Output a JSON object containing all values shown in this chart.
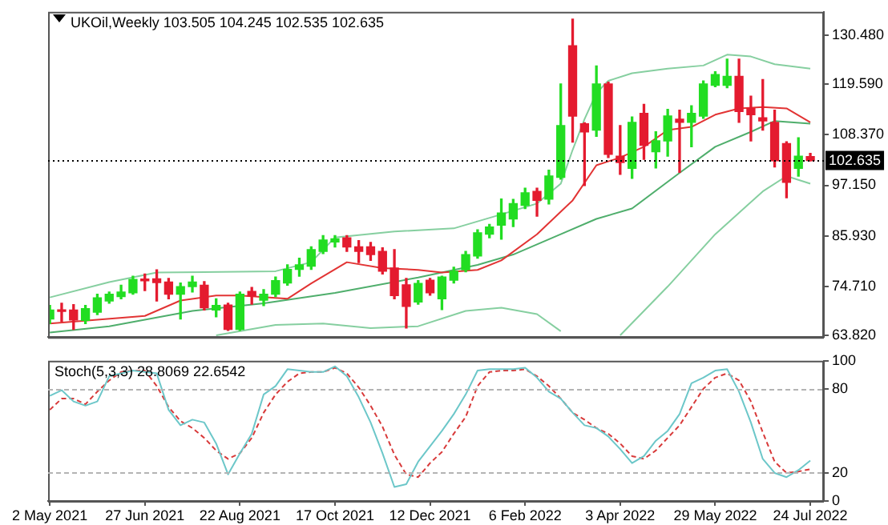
{
  "chart_data": [
    {
      "type": "candlestick",
      "title": "UKOil,Weekly 103.505 104.245 102.535 102.635",
      "x": [
        "2021-05-02",
        "2021-05-09",
        "2021-05-16",
        "2021-05-23",
        "2021-05-30",
        "2021-06-06",
        "2021-06-13",
        "2021-06-20",
        "2021-06-27",
        "2021-07-04",
        "2021-07-11",
        "2021-07-18",
        "2021-07-25",
        "2021-08-01",
        "2021-08-08",
        "2021-08-15",
        "2021-08-22",
        "2021-08-29",
        "2021-09-05",
        "2021-09-12",
        "2021-09-19",
        "2021-09-26",
        "2021-10-03",
        "2021-10-10",
        "2021-10-17",
        "2021-10-24",
        "2021-10-31",
        "2021-11-07",
        "2021-11-14",
        "2021-11-21",
        "2021-11-28",
        "2021-12-05",
        "2021-12-12",
        "2021-12-19",
        "2021-12-26",
        "2022-01-02",
        "2022-01-09",
        "2022-01-16",
        "2022-01-23",
        "2022-01-30",
        "2022-02-06",
        "2022-02-13",
        "2022-02-20",
        "2022-02-27",
        "2022-03-06",
        "2022-03-13",
        "2022-03-20",
        "2022-03-27",
        "2022-04-03",
        "2022-04-10",
        "2022-04-17",
        "2022-04-24",
        "2022-05-01",
        "2022-05-08",
        "2022-05-15",
        "2022-05-22",
        "2022-05-29",
        "2022-06-05",
        "2022-06-12",
        "2022-06-19",
        "2022-06-26",
        "2022-07-03",
        "2022-07-10",
        "2022-07-17",
        "2022-07-24"
      ],
      "ohlc": [
        [
          67.5,
          70.5,
          66.5,
          69.5
        ],
        [
          69.5,
          71,
          67,
          69.2
        ],
        [
          69.5,
          70.7,
          65.2,
          67.3
        ],
        [
          67.2,
          70.5,
          66.5,
          69.8
        ],
        [
          69,
          73,
          68.5,
          72.2
        ],
        [
          71.5,
          73.5,
          71,
          73
        ],
        [
          72.5,
          75,
          72,
          73.5
        ],
        [
          73.3,
          77,
          73,
          76.3
        ],
        [
          76.3,
          77.5,
          73.8,
          76
        ],
        [
          76.4,
          78.4,
          71.5,
          75.6
        ],
        [
          75.7,
          76.5,
          72,
          73
        ],
        [
          73,
          75.5,
          67.5,
          74.7
        ],
        [
          74.7,
          77,
          73.5,
          75.7
        ],
        [
          75,
          75.8,
          69.5,
          70
        ],
        [
          69.5,
          72,
          68,
          70.5
        ],
        [
          70.6,
          71,
          65,
          65.2
        ],
        [
          65.2,
          73.5,
          65,
          73
        ],
        [
          73.6,
          74.5,
          70.8,
          72.6
        ],
        [
          71.7,
          74,
          70.5,
          73
        ],
        [
          73,
          76.8,
          72.5,
          76
        ],
        [
          75.5,
          79.5,
          75,
          78.5
        ],
        [
          78.5,
          81,
          77,
          79.5
        ],
        [
          79.2,
          83.5,
          78.5,
          82.9
        ],
        [
          82.5,
          86,
          82,
          85
        ],
        [
          84.6,
          86,
          83.5,
          85.3
        ],
        [
          85.5,
          86,
          82.5,
          83.5
        ],
        [
          83.5,
          84.9,
          80,
          82.5
        ],
        [
          83.5,
          84.5,
          80.5,
          81.8
        ],
        [
          82.5,
          83.3,
          77.5,
          78.1
        ],
        [
          78.8,
          82.9,
          72,
          72.7
        ],
        [
          75.1,
          76.5,
          65.5,
          70.3
        ],
        [
          71.3,
          76,
          70.8,
          75.4
        ],
        [
          76.1,
          76.5,
          72.8,
          73.3
        ],
        [
          72,
          77,
          69.6,
          76.8
        ],
        [
          76.1,
          79,
          75.5,
          78.1
        ],
        [
          78.4,
          82.5,
          78,
          81.8
        ],
        [
          81.5,
          87.3,
          81,
          86.6
        ],
        [
          86.3,
          88.5,
          85.5,
          87.9
        ],
        [
          88.3,
          94.1,
          85.2,
          91
        ],
        [
          89.7,
          94,
          88,
          93.1
        ],
        [
          92.7,
          96.5,
          92,
          95.5
        ],
        [
          95.8,
          96.5,
          90.3,
          93.8
        ],
        [
          94.1,
          100.5,
          93,
          99.2
        ],
        [
          98.9,
          119.6,
          98.5,
          110.4
        ],
        [
          128.1,
          134,
          106.7,
          112.5
        ],
        [
          110.8,
          111,
          97.1,
          109
        ],
        [
          109.4,
          123.6,
          108,
          119.6
        ],
        [
          119.6,
          120,
          103.3,
          104
        ],
        [
          103.6,
          110.4,
          99.6,
          102.2
        ],
        [
          100.9,
          112.3,
          98.7,
          111.1
        ],
        [
          113.1,
          115.1,
          102.9,
          106
        ],
        [
          104.6,
          109,
          101,
          107
        ],
        [
          107,
          114,
          103.6,
          112.5
        ],
        [
          111.8,
          113.8,
          100,
          111.1
        ],
        [
          111.1,
          114.8,
          105.7,
          113.1
        ],
        [
          112.5,
          120.3,
          112,
          119.6
        ],
        [
          119.3,
          122.3,
          119,
          121.7
        ],
        [
          119.3,
          125.1,
          118.8,
          121.3
        ],
        [
          121.3,
          125.1,
          111.1,
          113.5
        ],
        [
          114.2,
          116.9,
          107,
          112.8
        ],
        [
          112.1,
          120.6,
          109.4,
          111.4
        ],
        [
          111.1,
          113.8,
          101.2,
          102.6
        ],
        [
          106.4,
          106.8,
          94.4,
          97.8
        ],
        [
          100.9,
          107.7,
          99.2,
          103.6
        ],
        [
          103.505,
          104.245,
          102.535,
          102.635
        ]
      ],
      "colors": [
        "#22dd22",
        "#e41b2f",
        "#e41b2f",
        "#22dd22",
        "#22dd22",
        "#22dd22",
        "#22dd22",
        "#22dd22",
        "#e41b2f",
        "#e41b2f",
        "#e41b2f",
        "#22dd22",
        "#22dd22",
        "#e41b2f",
        "#22dd22",
        "#e41b2f",
        "#22dd22",
        "#e41b2f",
        "#22dd22",
        "#22dd22",
        "#22dd22",
        "#22dd22",
        "#22dd22",
        "#22dd22",
        "#22dd22",
        "#e41b2f",
        "#e41b2f",
        "#e41b2f",
        "#e41b2f",
        "#e41b2f",
        "#e41b2f",
        "#22dd22",
        "#e41b2f",
        "#22dd22",
        "#22dd22",
        "#22dd22",
        "#22dd22",
        "#22dd22",
        "#22dd22",
        "#22dd22",
        "#22dd22",
        "#e41b2f",
        "#22dd22",
        "#22dd22",
        "#e41b2f",
        "#e41b2f",
        "#22dd22",
        "#e41b2f",
        "#e41b2f",
        "#22dd22",
        "#e41b2f",
        "#22dd22",
        "#22dd22",
        "#e41b2f",
        "#22dd22",
        "#22dd22",
        "#22dd22",
        "#22dd22",
        "#e41b2f",
        "#e41b2f",
        "#e41b2f",
        "#e41b2f",
        "#e41b2f",
        "#22dd22",
        "#e41b2f"
      ],
      "series": [
        {
          "type": "line",
          "color": "#86cfa0",
          "x": [
            "2021-05-02",
            "2021-06-06",
            "2021-07-04",
            "2021-09-12",
            "2021-10-03",
            "2021-10-17",
            "2021-11-21",
            "2021-12-26",
            "2022-01-23",
            "2022-02-13",
            "2022-02-27",
            "2022-03-06",
            "2022-03-13",
            "2022-03-20",
            "2022-03-27",
            "2022-04-10",
            "2022-05-01",
            "2022-05-22",
            "2022-06-05",
            "2022-06-19",
            "2022-07-03",
            "2022-07-24"
          ],
          "values": [
            72.3,
            75.7,
            77.8,
            78.1,
            80.1,
            85.6,
            86.9,
            87.6,
            90.7,
            93.1,
            97.5,
            105,
            111.8,
            117.6,
            120.3,
            122,
            123,
            123.7,
            126.1,
            125.7,
            124,
            123
          ]
        },
        {
          "type": "line",
          "color": "#e23434",
          "x": [
            "2021-05-02",
            "2021-06-27",
            "2021-07-18",
            "2021-08-08",
            "2021-08-22",
            "2021-09-19",
            "2021-10-03",
            "2021-10-24",
            "2021-11-14",
            "2021-12-05",
            "2021-12-19",
            "2022-01-09",
            "2022-01-23",
            "2022-02-13",
            "2022-03-06",
            "2022-03-20",
            "2022-04-03",
            "2022-04-17",
            "2022-05-01",
            "2022-05-15",
            "2022-05-29",
            "2022-06-12",
            "2022-06-26",
            "2022-07-10",
            "2022-07-24"
          ],
          "values": [
            66.5,
            68.2,
            71.6,
            72.7,
            72.7,
            72,
            75.4,
            80.1,
            78.8,
            78.4,
            77.8,
            78.4,
            80.5,
            86.3,
            93.8,
            101.6,
            103.3,
            105.7,
            109.4,
            110.1,
            112.8,
            114.2,
            114.5,
            114.2,
            111.1
          ]
        },
        {
          "type": "line",
          "color": "#4fae6c",
          "x": [
            "2021-05-02",
            "2021-06-06",
            "2021-07-25",
            "2021-09-05",
            "2021-10-17",
            "2021-12-05",
            "2022-01-09",
            "2022-01-30",
            "2022-02-27",
            "2022-03-20",
            "2022-04-10",
            "2022-05-08",
            "2022-05-29",
            "2022-06-19",
            "2022-07-03",
            "2022-07-24"
          ],
          "values": [
            64.5,
            65.9,
            69.3,
            71,
            73.3,
            76.7,
            79.5,
            81.8,
            86.3,
            89.7,
            92,
            99.9,
            105.7,
            109,
            111.4,
            110.8
          ]
        },
        {
          "type": "line",
          "color": "#86cfa0",
          "x": [
            "2021-08-08",
            "2021-09-12",
            "2021-10-10",
            "2021-11-07",
            "2021-12-05",
            "2022-01-02",
            "2022-01-23",
            "2022-02-13",
            "2022-02-27",
            "2022-03-13",
            "2022-04-03",
            "2022-05-01",
            "2022-05-29",
            "2022-06-26",
            "2022-07-10",
            "2022-07-24"
          ],
          "values": [
            63.9,
            66.2,
            66.5,
            65.5,
            65.9,
            69.3,
            70,
            68.6,
            64.8,
            null,
            63.9,
            74.7,
            86.3,
            95.8,
            99.2,
            97.5
          ]
        }
      ],
      "xlim": [
        "2021-05-01",
        "2022-08-01"
      ],
      "ylim": [
        63.5,
        135.6
      ],
      "yticks": [
        {
          "value": 63.82,
          "label": "63.820"
        },
        {
          "value": 74.71,
          "label": "74.710"
        },
        {
          "value": 85.93,
          "label": "85.930"
        },
        {
          "value": 97.15,
          "label": "97.150"
        },
        {
          "value": 108.37,
          "label": "108.370"
        },
        {
          "value": 119.59,
          "label": "119.590"
        },
        {
          "value": 130.48,
          "label": "130.480"
        }
      ],
      "tick_labels": "y",
      "ref_lines": [
        {
          "axis": "y",
          "value": 102.635,
          "label": "102.635",
          "color": "#000000",
          "line_style": "dotted"
        }
      ]
    },
    {
      "type": "line",
      "title": "Stoch(5,3,3) 28.8069 22.6542",
      "x": [
        "2021-05-02",
        "2021-05-09",
        "2021-05-16",
        "2021-05-23",
        "2021-05-30",
        "2021-06-06",
        "2021-06-13",
        "2021-06-20",
        "2021-06-27",
        "2021-07-04",
        "2021-07-11",
        "2021-07-18",
        "2021-07-25",
        "2021-08-01",
        "2021-08-08",
        "2021-08-15",
        "2021-08-22",
        "2021-08-29",
        "2021-09-05",
        "2021-09-12",
        "2021-09-19",
        "2021-09-26",
        "2021-10-03",
        "2021-10-10",
        "2021-10-17",
        "2021-10-24",
        "2021-10-31",
        "2021-11-07",
        "2021-11-14",
        "2021-11-21",
        "2021-11-28",
        "2021-12-05",
        "2021-12-12",
        "2021-12-19",
        "2021-12-26",
        "2022-01-02",
        "2022-01-09",
        "2022-01-16",
        "2022-01-23",
        "2022-01-30",
        "2022-02-06",
        "2022-02-13",
        "2022-02-20",
        "2022-02-27",
        "2022-03-06",
        "2022-03-13",
        "2022-03-20",
        "2022-03-27",
        "2022-04-03",
        "2022-04-10",
        "2022-04-17",
        "2022-04-24",
        "2022-05-01",
        "2022-05-08",
        "2022-05-15",
        "2022-05-22",
        "2022-05-29",
        "2022-06-05",
        "2022-06-12",
        "2022-06-19",
        "2022-06-26",
        "2022-07-03",
        "2022-07-10",
        "2022-07-17",
        "2022-07-24"
      ],
      "series": [
        {
          "color": "#6cc7c9",
          "line_style": "solid",
          "values": [
            75,
            79,
            71,
            68,
            71,
            89,
            91,
            93,
            92,
            91,
            65,
            54,
            58,
            56,
            41,
            19,
            34,
            48,
            76,
            82,
            94,
            93,
            92,
            92,
            96,
            89,
            74,
            56,
            34,
            10,
            12,
            28,
            39,
            50,
            62,
            76,
            93,
            94,
            94,
            94,
            95,
            88,
            78,
            73,
            63,
            54,
            52,
            46,
            37,
            27,
            32,
            43,
            50,
            62,
            84,
            88,
            93,
            94,
            78,
            56,
            30,
            20,
            17,
            22,
            28.8
          ]
        },
        {
          "color": "#d83a3a",
          "line_style": "dashed",
          "values": [
            65,
            73,
            73,
            69,
            78,
            86,
            92,
            93,
            93,
            82,
            67,
            57,
            52,
            45,
            36,
            30,
            34,
            45,
            63,
            76,
            85,
            91,
            92,
            92,
            95,
            91,
            81,
            68,
            53,
            33,
            19,
            17,
            27,
            35,
            48,
            60,
            82,
            92,
            93,
            93,
            94,
            89,
            82,
            73,
            63,
            58,
            52,
            48,
            41,
            32,
            30,
            36,
            45,
            54,
            67,
            80,
            88,
            91,
            86,
            71,
            49,
            28,
            20,
            21,
            22.7
          ]
        }
      ],
      "xlim": [
        "2021-05-01",
        "2022-08-01"
      ],
      "xticks": [
        {
          "value": "2021-05-02",
          "label": "2 May 2021"
        },
        {
          "value": "2021-06-27",
          "label": "27 Jun 2021"
        },
        {
          "value": "2021-08-22",
          "label": "22 Aug 2021"
        },
        {
          "value": "2021-10-17",
          "label": "17 Oct 2021"
        },
        {
          "value": "2021-12-12",
          "label": "12 Dec 2021"
        },
        {
          "value": "2022-02-06",
          "label": "6 Feb 2022"
        },
        {
          "value": "2022-04-03",
          "label": "3 Apr 2022"
        },
        {
          "value": "2022-05-29",
          "label": "29 May 2022"
        },
        {
          "value": "2022-07-24",
          "label": "24 Jul 2022"
        }
      ],
      "ylim": [
        0,
        100
      ],
      "yticks": [
        0,
        20,
        80,
        100
      ],
      "ref_lines": [
        {
          "axis": "y",
          "value": 20,
          "color": "#b4b4b4",
          "line_style": "dashed"
        },
        {
          "axis": "y",
          "value": 80,
          "color": "#b4b4b4",
          "line_style": "dashed"
        }
      ]
    }
  ]
}
